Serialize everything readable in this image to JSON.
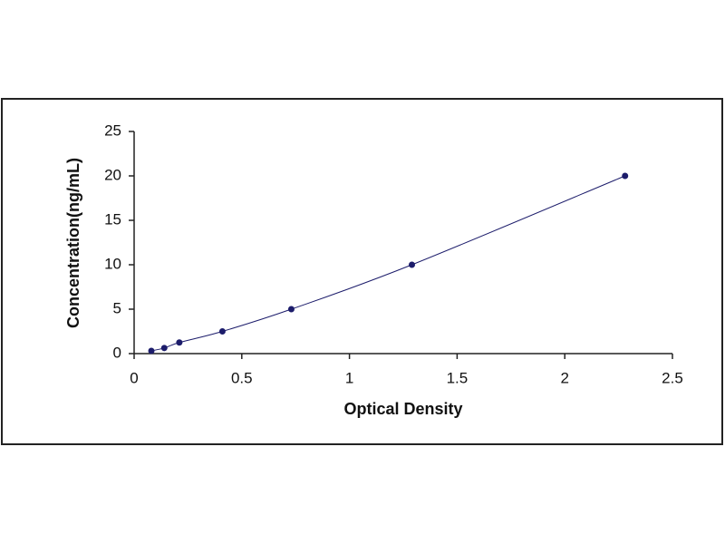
{
  "chart_data": {
    "type": "scatter",
    "x_label": "Optical Density",
    "y_label": "Concentration(ng/mL)",
    "series": [
      {
        "color": "#1c1c6b",
        "x": [
          0.08,
          0.14,
          0.21,
          0.41,
          0.73,
          1.29,
          2.28
        ],
        "values": [
          0.31,
          0.63,
          1.25,
          2.5,
          5,
          10,
          20
        ]
      }
    ],
    "fit_line": true,
    "xlim": [
      0,
      2.5
    ],
    "xticks": [
      0,
      0.5,
      1,
      1.5,
      2,
      2.5
    ],
    "ylim": [
      0,
      25
    ],
    "yticks": [
      0,
      5,
      10,
      15,
      20,
      25
    ]
  }
}
